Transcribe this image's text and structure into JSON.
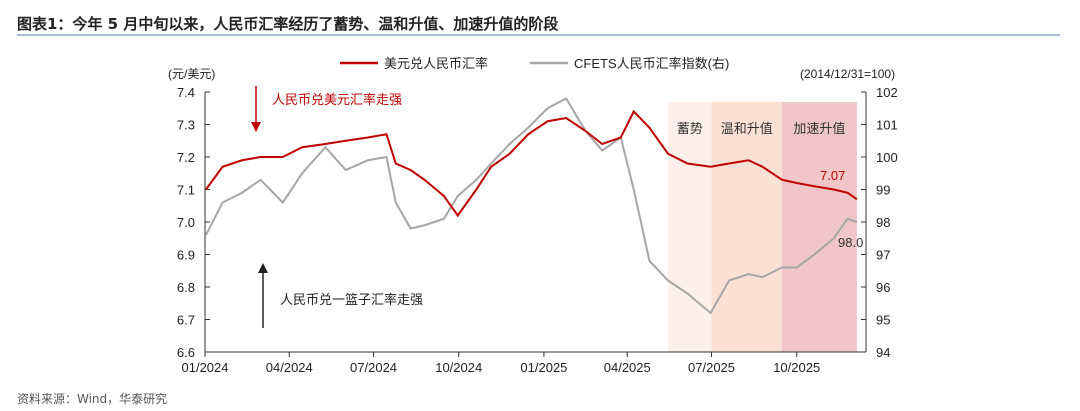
{
  "header": {
    "title": "图表1：今年 5 月中旬以来，人民币汇率经历了蓄势、温和升值、加速升值的阶段"
  },
  "footer": {
    "source": "资料来源：Wind，华泰研究"
  },
  "chart_data": {
    "type": "line",
    "left_axis_unit": "(元/美元)",
    "right_axis_unit": "(2014/12/31=100)",
    "ylim_left": [
      6.6,
      7.4
    ],
    "yticks_left": [
      "6.6",
      "6.7",
      "6.8",
      "6.9",
      "7.0",
      "7.1",
      "7.2",
      "7.3",
      "7.4"
    ],
    "ylim_right": [
      94,
      102
    ],
    "yticks_right": [
      "94",
      "95",
      "96",
      "97",
      "98",
      "99",
      "100",
      "101",
      "102"
    ],
    "xticks": [
      {
        "label": "01/2024",
        "date": "2024-01-01"
      },
      {
        "label": "04/2024",
        "date": "2024-04-01"
      },
      {
        "label": "07/2024",
        "date": "2024-07-01"
      },
      {
        "label": "10/2024",
        "date": "2024-10-01"
      },
      {
        "label": "01/2025",
        "date": "2025-01-01"
      },
      {
        "label": "04/2025",
        "date": "2025-04-01"
      },
      {
        "label": "07/2025",
        "date": "2025-07-01"
      },
      {
        "label": "10/2025",
        "date": "2025-10-01"
      }
    ],
    "series": [
      {
        "name": "美元兑人民币汇率",
        "axis": "left",
        "color": "#c00000",
        "x": [
          "2024-01-02",
          "2024-01-20",
          "2024-02-10",
          "2024-03-01",
          "2024-03-25",
          "2024-04-15",
          "2024-05-10",
          "2024-06-01",
          "2024-06-25",
          "2024-07-15",
          "2024-07-25",
          "2024-08-10",
          "2024-08-25",
          "2024-09-15",
          "2024-09-30",
          "2024-10-20",
          "2024-11-05",
          "2024-11-25",
          "2024-12-15",
          "2025-01-05",
          "2025-01-25",
          "2025-02-15",
          "2025-03-05",
          "2025-03-25",
          "2025-04-08",
          "2025-04-25",
          "2025-05-15",
          "2025-06-05",
          "2025-06-30",
          "2025-07-20",
          "2025-08-10",
          "2025-08-25",
          "2025-09-15",
          "2025-10-01",
          "2025-10-20",
          "2025-11-10",
          "2025-11-25",
          "2025-12-05"
        ],
        "y": [
          7.1,
          7.17,
          7.19,
          7.2,
          7.2,
          7.23,
          7.24,
          7.25,
          7.26,
          7.27,
          7.18,
          7.16,
          7.13,
          7.08,
          7.02,
          7.1,
          7.17,
          7.21,
          7.27,
          7.31,
          7.32,
          7.28,
          7.24,
          7.26,
          7.34,
          7.29,
          7.21,
          7.18,
          7.17,
          7.18,
          7.19,
          7.17,
          7.13,
          7.12,
          7.11,
          7.1,
          7.09,
          7.07
        ]
      },
      {
        "name": "CFETS人民币汇率指数(右)",
        "axis": "right",
        "color": "#a6a6a6",
        "x": [
          "2024-01-02",
          "2024-01-20",
          "2024-02-10",
          "2024-03-01",
          "2024-03-25",
          "2024-04-15",
          "2024-05-10",
          "2024-06-01",
          "2024-06-25",
          "2024-07-15",
          "2024-07-25",
          "2024-08-10",
          "2024-08-25",
          "2024-09-15",
          "2024-09-30",
          "2024-10-20",
          "2024-11-05",
          "2024-11-25",
          "2024-12-15",
          "2025-01-05",
          "2025-01-25",
          "2025-02-15",
          "2025-03-05",
          "2025-03-25",
          "2025-04-08",
          "2025-04-25",
          "2025-05-15",
          "2025-06-05",
          "2025-06-30",
          "2025-07-20",
          "2025-08-10",
          "2025-08-25",
          "2025-09-15",
          "2025-10-01",
          "2025-10-20",
          "2025-11-10",
          "2025-11-25",
          "2025-12-05"
        ],
        "y": [
          97.6,
          98.6,
          98.9,
          99.3,
          98.6,
          99.5,
          100.3,
          99.6,
          99.9,
          100.0,
          98.6,
          97.8,
          97.9,
          98.1,
          98.8,
          99.3,
          99.8,
          100.4,
          100.9,
          101.5,
          101.8,
          100.8,
          100.2,
          100.6,
          99.0,
          96.8,
          96.2,
          95.8,
          95.2,
          96.2,
          96.4,
          96.3,
          96.6,
          96.6,
          97.0,
          97.5,
          98.1,
          98.0
        ]
      }
    ],
    "end_labels": {
      "left": "7.07",
      "right": "98.0"
    },
    "phases": [
      {
        "label": "蓄势",
        "start": "2025-05-15",
        "end": "2025-07-01",
        "color": "#fdf0ea"
      },
      {
        "label": "温和升值",
        "start": "2025-07-01",
        "end": "2025-09-15",
        "color": "#fbe1d4"
      },
      {
        "label": "加速升值",
        "start": "2025-09-15",
        "end": "2025-12-05",
        "color": "#f0c6c8"
      }
    ],
    "annotations": [
      {
        "text": "人民币兑美元汇率走强",
        "color": "#c00000",
        "arrow": "down"
      },
      {
        "text": "人民币兑一篮子汇率走强",
        "color": "#222222",
        "arrow": "up"
      }
    ],
    "legend": "top"
  }
}
